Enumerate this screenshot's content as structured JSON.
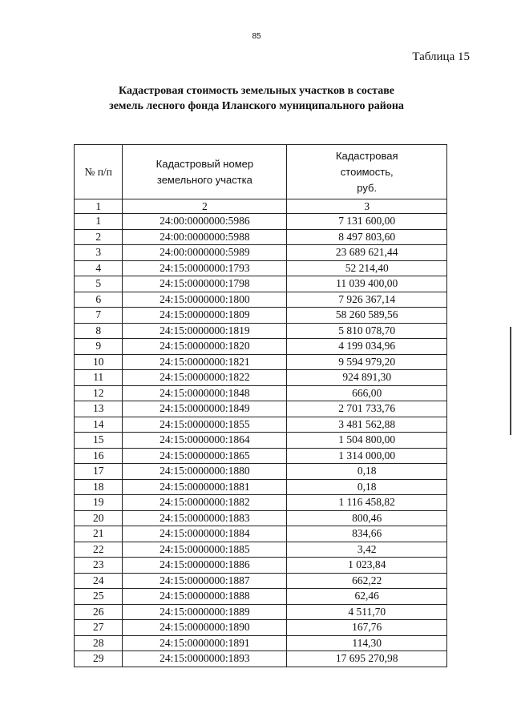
{
  "page_number": "85",
  "table_label": "Таблица 15",
  "title_line1": "Кадастровая стоимость земельных участков в составе",
  "title_line2": "земель лесного фонда Иланского муниципального района",
  "headers": {
    "col1": "№ п/п",
    "col2": "Кадастровый номер земельного участка",
    "col3": "Кадастровая стоимость, руб."
  },
  "column_numbers": [
    "1",
    "2",
    "3"
  ],
  "rows": [
    [
      "1",
      "24:00:0000000:5986",
      "7 131 600,00"
    ],
    [
      "2",
      "24:00:0000000:5988",
      "8 497 803,60"
    ],
    [
      "3",
      "24:00:0000000:5989",
      "23 689 621,44"
    ],
    [
      "4",
      "24:15:0000000:1793",
      "52 214,40"
    ],
    [
      "5",
      "24:15:0000000:1798",
      "11 039 400,00"
    ],
    [
      "6",
      "24:15:0000000:1800",
      "7 926 367,14"
    ],
    [
      "7",
      "24:15:0000000:1809",
      "58 260 589,56"
    ],
    [
      "8",
      "24:15:0000000:1819",
      "5 810 078,70"
    ],
    [
      "9",
      "24:15:0000000:1820",
      "4 199 034,96"
    ],
    [
      "10",
      "24:15:0000000:1821",
      "9 594 979,20"
    ],
    [
      "11",
      "24:15:0000000:1822",
      "924 891,30"
    ],
    [
      "12",
      "24:15:0000000:1848",
      "666,00"
    ],
    [
      "13",
      "24:15:0000000:1849",
      "2 701 733,76"
    ],
    [
      "14",
      "24:15:0000000:1855",
      "3 481 562,88"
    ],
    [
      "15",
      "24:15:0000000:1864",
      "1 504 800,00"
    ],
    [
      "16",
      "24:15:0000000:1865",
      "1 314 000,00"
    ],
    [
      "17",
      "24:15:0000000:1880",
      "0,18"
    ],
    [
      "18",
      "24:15:0000000:1881",
      "0,18"
    ],
    [
      "19",
      "24:15:0000000:1882",
      "1 116 458,82"
    ],
    [
      "20",
      "24:15:0000000:1883",
      "800,46"
    ],
    [
      "21",
      "24:15:0000000:1884",
      "834,66"
    ],
    [
      "22",
      "24:15:0000000:1885",
      "3,42"
    ],
    [
      "23",
      "24:15:0000000:1886",
      "1 023,84"
    ],
    [
      "24",
      "24:15:0000000:1887",
      "662,22"
    ],
    [
      "25",
      "24:15:0000000:1888",
      "62,46"
    ],
    [
      "26",
      "24:15:0000000:1889",
      "4 511,70"
    ],
    [
      "27",
      "24:15:0000000:1890",
      "167,76"
    ],
    [
      "28",
      "24:15:0000000:1891",
      "114,30"
    ],
    [
      "29",
      "24:15:0000000:1893",
      "17 695 270,98"
    ]
  ]
}
